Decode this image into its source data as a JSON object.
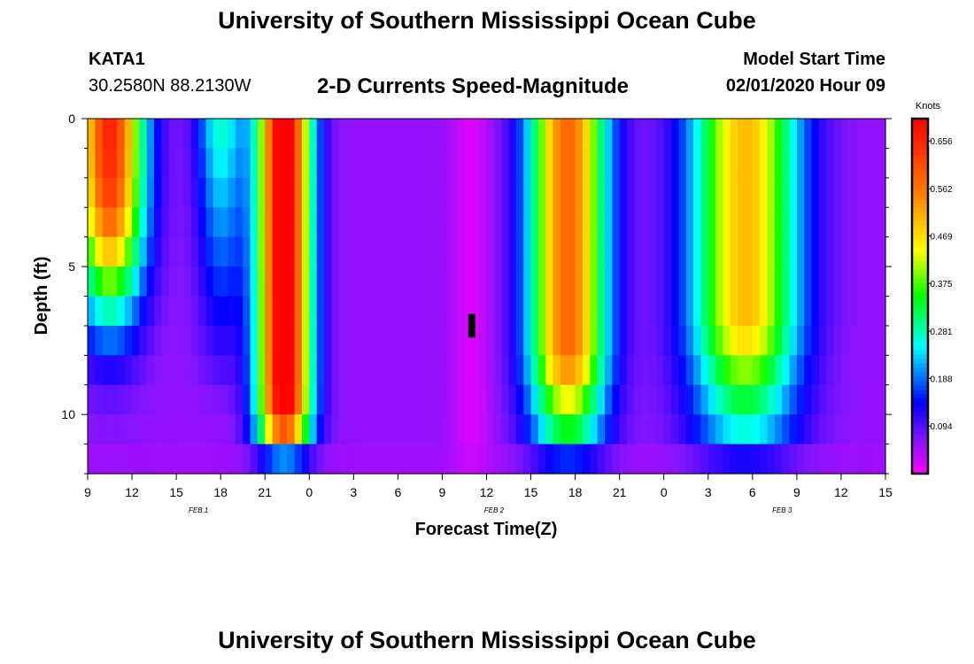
{
  "header": {
    "title": "University of Southern Mississippi Ocean Cube",
    "station_id": "KATA1",
    "coordinates": "30.2580N 88.2130W",
    "subtitle": "2-D Currents Speed-Magnitude",
    "model_start_label": "Model Start Time",
    "model_start_time": "02/01/2020 Hour 09"
  },
  "footer": {
    "title": "University of Southern Mississippi Ocean Cube"
  },
  "chart_data": {
    "type": "heatmap",
    "title": "2-D Currents Speed-Magnitude",
    "xlabel": "Forecast Time(Z)",
    "ylabel": "Depth (ft)",
    "x_unit": "hours since 02/01/2020 09Z",
    "x_range": [
      0,
      54
    ],
    "y_range": [
      0,
      12
    ],
    "x_tick_labels": [
      "9",
      "12",
      "15",
      "18",
      "21",
      "0",
      "3",
      "6",
      "9",
      "12",
      "15",
      "18",
      "21",
      "0",
      "3",
      "6",
      "9",
      "12",
      "15"
    ],
    "day_labels": [
      {
        "hour": 7.5,
        "text": "FEB 1"
      },
      {
        "hour": 27.5,
        "text": "FEB 2"
      },
      {
        "hour": 47,
        "text": "FEB 3"
      }
    ],
    "y_ticks": [
      0,
      5,
      10
    ],
    "colorbar": {
      "label": "Knots",
      "min": 0,
      "max": 0.7,
      "tick_labels": [
        "0.656",
        "0.562",
        "0.469",
        "0.375",
        "0.281",
        "0.188",
        "0.094"
      ]
    },
    "depth_levels": [
      0.5,
      1.5,
      2.5,
      3.5,
      4.5,
      5.5,
      6.5,
      7.5,
      8.5,
      9.5,
      10.5,
      11.5
    ],
    "time_hours": [
      0,
      1,
      2,
      3,
      4,
      5,
      6,
      7,
      8,
      9,
      10,
      11,
      12,
      13,
      14,
      15,
      16,
      17,
      18,
      19,
      20,
      21,
      22,
      23,
      24,
      25,
      26,
      27,
      28,
      29,
      30,
      31,
      32,
      33,
      34,
      35,
      36,
      37,
      38,
      39,
      40,
      41,
      42,
      43,
      44,
      45,
      46,
      47,
      48,
      49,
      50,
      51,
      52,
      53,
      54
    ],
    "marker": {
      "hour": 26,
      "depth_min": 6.6,
      "depth_max": 7.4
    }
  }
}
